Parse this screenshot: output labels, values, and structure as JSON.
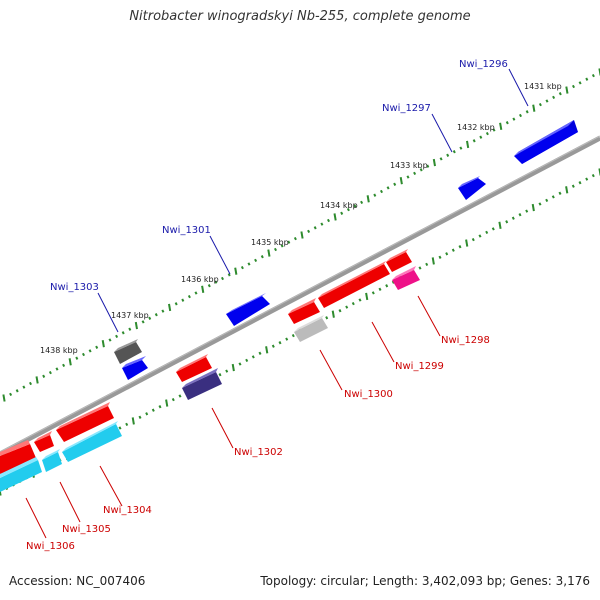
{
  "title": "Nitrobacter winogradskyi Nb-255, complete genome",
  "footer": {
    "accession": "Accession: NC_007406",
    "genome_info": "Topology: circular; Length: 3,402,093 bp; Genes: 3,176"
  },
  "colors": {
    "backbone": "#888888",
    "tick": "#2e8b2e",
    "forward_label": "#1a1aaa",
    "reverse_label": "#cc0000",
    "blue": "#0000ee",
    "red": "#ee0000",
    "cyan": "#22ccee",
    "gray": "#555555",
    "lightgray": "#bbbbbb",
    "navy": "#3a2f80",
    "pink": "#ee1188"
  },
  "kbp_labels": [
    "1431 kbp",
    "1432 kbp",
    "1433 kbp",
    "1434 kbp",
    "1435 kbp",
    "1436 kbp",
    "1437 kbp",
    "1438 kbp"
  ],
  "forward_genes": [
    {
      "name": "Nwi_1296",
      "color": "blue"
    },
    {
      "name": "Nwi_1297",
      "color": "blue"
    },
    {
      "name": "Nwi_1301",
      "color": "blue"
    },
    {
      "name": "Nwi_1303",
      "color": "blue"
    },
    {
      "name": "unlabeled",
      "color": "gray"
    }
  ],
  "reverse_genes": [
    {
      "name": "Nwi_1298",
      "color": "pink"
    },
    {
      "name": "Nwi_1299",
      "color": "red"
    },
    {
      "name": "Nwi_1300",
      "color": "lightgray"
    },
    {
      "name": "Nwi_1302",
      "color": "navy"
    },
    {
      "name": "Nwi_1304",
      "color": "cyan"
    },
    {
      "name": "Nwi_1305",
      "color": "cyan"
    },
    {
      "name": "Nwi_1306",
      "color": "cyan"
    }
  ]
}
